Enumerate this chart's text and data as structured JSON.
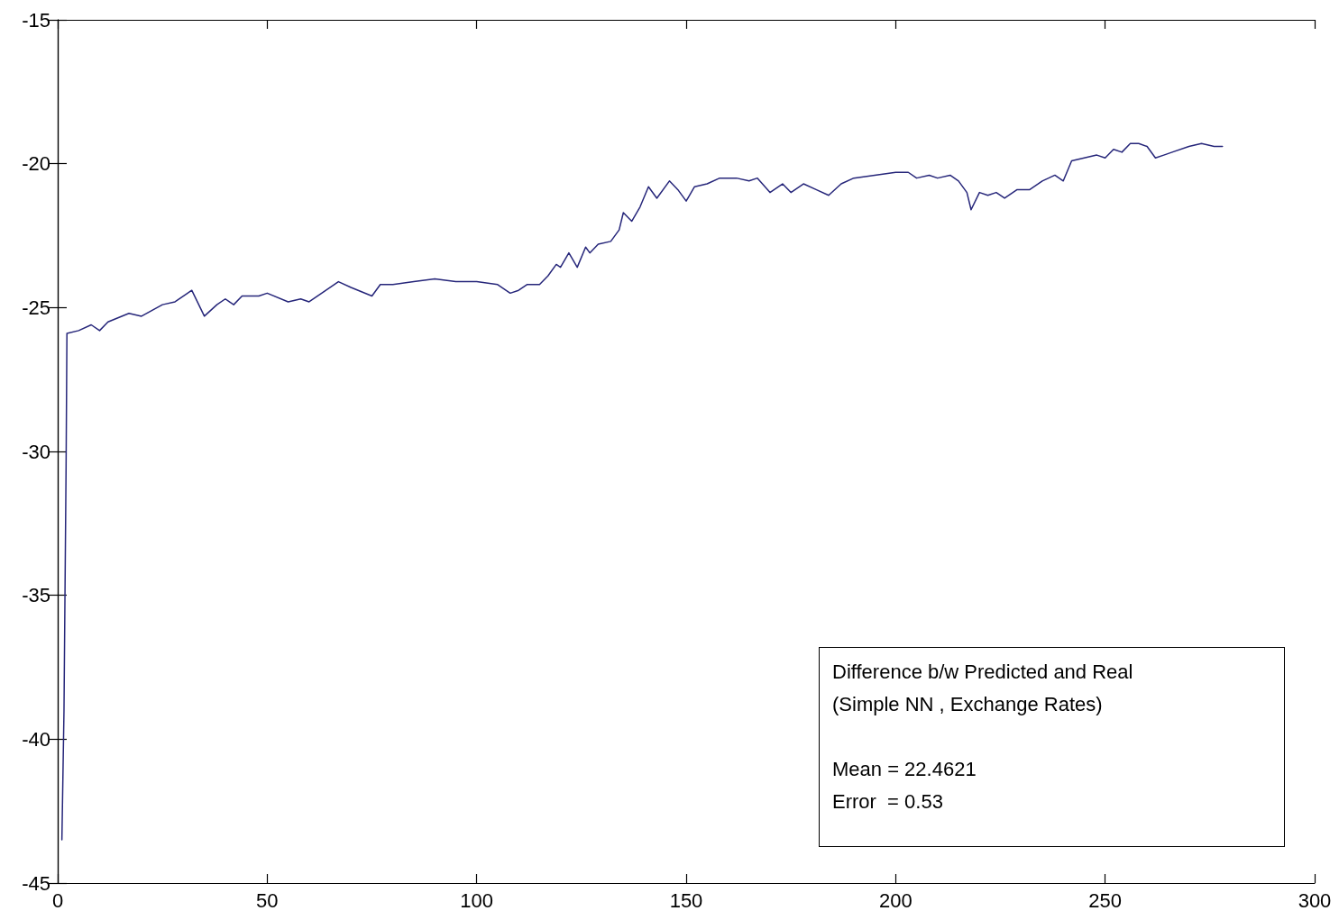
{
  "chart_data": {
    "type": "line",
    "annotations": [
      "Difference b/w Predicted and Real",
      "(Simple NN , Exchange Rates)",
      "Mean = 22.4621",
      "Error  = 0.53"
    ],
    "series": [
      {
        "color": "#26267a",
        "x": [
          1,
          1.5,
          2,
          2.2,
          5,
          8,
          10,
          12,
          17,
          20,
          25,
          28,
          31,
          32,
          35,
          38,
          40,
          42,
          44,
          48,
          50,
          55,
          58,
          60,
          63,
          67,
          70,
          75,
          77,
          80,
          85,
          90,
          95,
          100,
          105,
          108,
          110,
          112,
          115,
          117,
          119,
          120,
          122,
          124,
          126,
          127,
          129,
          132,
          134,
          135,
          137,
          139,
          141,
          143,
          146,
          148,
          150,
          152,
          155,
          158,
          162,
          165,
          167,
          170,
          173,
          175,
          178,
          181,
          184,
          187,
          190,
          195,
          200,
          203,
          205,
          208,
          210,
          213,
          215,
          217,
          218,
          220,
          222,
          224,
          226,
          229,
          232,
          235,
          238,
          240,
          242,
          245,
          248,
          250,
          252,
          254,
          256,
          258,
          260,
          262,
          264,
          266,
          270,
          273,
          276,
          278
        ],
        "values": [
          -43.5,
          -39,
          -30.5,
          -25.9,
          -25.8,
          -25.6,
          -25.8,
          -25.5,
          -25.2,
          -25.3,
          -24.9,
          -24.8,
          -24.5,
          -24.4,
          -25.3,
          -24.9,
          -24.7,
          -24.9,
          -24.6,
          -24.6,
          -24.5,
          -24.8,
          -24.7,
          -24.8,
          -24.5,
          -24.1,
          -24.3,
          -24.6,
          -24.2,
          -24.2,
          -24.1,
          -24.0,
          -24.1,
          -24.1,
          -24.2,
          -24.5,
          -24.4,
          -24.2,
          -24.2,
          -23.9,
          -23.5,
          -23.6,
          -23.1,
          -23.6,
          -22.9,
          -23.1,
          -22.8,
          -22.7,
          -22.3,
          -21.7,
          -22.0,
          -21.5,
          -20.8,
          -21.2,
          -20.6,
          -20.9,
          -21.3,
          -20.8,
          -20.7,
          -20.5,
          -20.5,
          -20.6,
          -20.5,
          -21.0,
          -20.7,
          -21.0,
          -20.7,
          -20.9,
          -21.1,
          -20.7,
          -20.5,
          -20.4,
          -20.3,
          -20.3,
          -20.5,
          -20.4,
          -20.5,
          -20.4,
          -20.6,
          -21.0,
          -21.6,
          -21.0,
          -21.1,
          -21.0,
          -21.2,
          -20.9,
          -20.9,
          -20.6,
          -20.4,
          -20.6,
          -19.9,
          -19.8,
          -19.7,
          -19.8,
          -19.5,
          -19.6,
          -19.3,
          -19.3,
          -19.4,
          -19.8,
          -19.7,
          -19.6,
          -19.4,
          -19.3,
          -19.4,
          -19.4
        ]
      }
    ],
    "xlim": [
      0,
      300
    ],
    "xticks": [
      0,
      50,
      100,
      150,
      200,
      250,
      300
    ],
    "ylim": [
      -45,
      -15
    ],
    "yticks": [
      -45,
      -40,
      -35,
      -30,
      -25,
      -20,
      -15
    ],
    "grid": false,
    "marker": "none",
    "line_style": "solid"
  }
}
